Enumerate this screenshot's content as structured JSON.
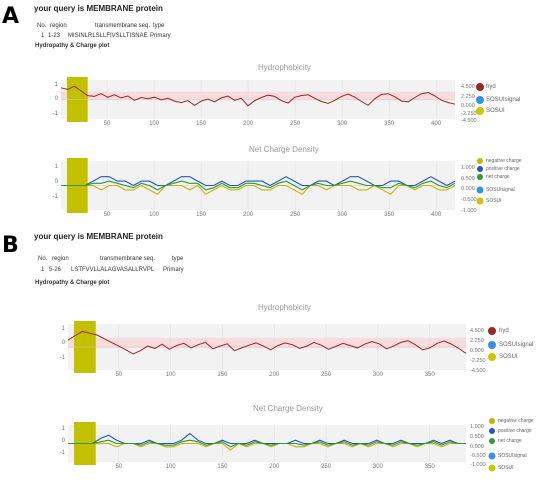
{
  "panels": [
    {
      "letter": "A",
      "query": "your query is MEMBRANE protein",
      "table": {
        "headers": [
          "No.",
          "region",
          "transmembrane seq.",
          "type"
        ],
        "row": [
          "1",
          "1-23",
          "MISINLRLSLLFIVSLLTISNAE",
          "Primary"
        ]
      },
      "subtitle": "Hydropathy & Charge plot",
      "hydro_title": "Hydrophobicity",
      "charge_title": "Net Charge Density",
      "hydro_legend": [
        "hyd",
        "SOSUIsignal",
        "SOSUI"
      ],
      "charge_legend": [
        "negative charge",
        "positive charge",
        "net charge",
        "SOSUIsignal",
        "SOSUI"
      ]
    },
    {
      "letter": "B",
      "query": "your query is MEMBRANE protein",
      "table": {
        "headers": [
          "No.",
          "region",
          "transmembrane seq.",
          "type"
        ],
        "row": [
          "1",
          "5-26",
          "LSTFVVLLALAGVASALLRVPL",
          "Primary"
        ]
      },
      "subtitle": "Hydropathy & Charge plot",
      "hydro_title": "Hydrophobicity",
      "charge_title": "Net Charge Density",
      "hydro_legend": [
        "hyd",
        "SOSUIsignal",
        "SOSUI"
      ],
      "charge_legend": [
        "negative charge",
        "positive charge",
        "net charge",
        "SOSUIsignal",
        "SOSUI"
      ]
    }
  ],
  "colors": {
    "hyd": "#a0261f",
    "negative": "#c8b400",
    "positive": "#2255cc",
    "net": "#2a9d2a",
    "signal": "#3a8ee6",
    "sosui": "#c8c800",
    "tm_band": "#c3c000"
  },
  "chart_data": [
    {
      "type": "line",
      "title": "Hydrophobicity",
      "x_ticks": [
        "50",
        "100",
        "150",
        "200",
        "250",
        "300",
        "350",
        "400"
      ],
      "xlim": [
        1,
        420
      ],
      "y_left_ticks": [
        "1",
        "0",
        "-1"
      ],
      "y_right_ticks": [
        "4.500",
        "2.250",
        "0.000",
        "-2.250",
        "-4.500"
      ],
      "tm_region": [
        1,
        23
      ],
      "series": [
        {
          "name": "hyd",
          "y": [
            3.0,
            2.6,
            3.4,
            2.2,
            1.0,
            0.8,
            1.5,
            0.6,
            1.2,
            0.4,
            0.9,
            -0.2,
            0.5,
            0.2,
            0.6,
            -0.1,
            0.3,
            -0.4,
            -0.8,
            -0.3,
            -1.5,
            -0.4,
            0.1,
            -0.6,
            0.4,
            0.9,
            -0.2,
            0.3,
            -1.6,
            -0.3,
            0.5,
            1.1,
            0.8,
            -0.3,
            -0.9,
            0.6,
            1.0,
            1.2,
            0.3,
            -0.5,
            -1.0,
            -0.2,
            0.8,
            1.4,
            0.6,
            -0.5,
            -1.5,
            0.2,
            1.3,
            1.5,
            0.7,
            -0.4,
            -0.6,
            0.5,
            1.5,
            1.8,
            0.9,
            -0.2,
            -0.8,
            -1.2
          ]
        }
      ]
    },
    {
      "type": "line",
      "title": "Net Charge Density",
      "x_ticks": [
        "50",
        "100",
        "150",
        "200",
        "250",
        "300",
        "350",
        "400"
      ],
      "xlim": [
        1,
        420
      ],
      "y_left_ticks": [
        "1",
        "0",
        "-1"
      ],
      "y_right_ticks": [
        "1.000",
        "0.500",
        "0.000",
        "-0.500",
        "-1.000"
      ],
      "tm_region": [
        1,
        23
      ],
      "series": [
        {
          "name": "positive charge",
          "y": [
            0,
            0,
            0,
            0,
            0.2,
            0.4,
            0.4,
            0.2,
            0.2,
            0,
            0.2,
            0.2,
            0,
            0,
            0.2,
            0.4,
            0.4,
            0.2,
            0,
            0,
            0.2,
            0,
            0,
            0.2,
            0.2,
            0.2,
            0,
            0.2,
            0.4,
            0.2,
            0,
            0,
            0.2,
            0.2,
            0,
            0.2,
            0.4,
            0.4,
            0.2,
            0,
            0,
            0.2,
            0.2,
            0,
            0,
            0.2,
            0.4,
            0.2,
            0,
            0.2
          ]
        },
        {
          "name": "negative charge",
          "y": [
            0,
            0,
            0,
            0,
            0,
            -0.2,
            0,
            0,
            -0.2,
            -0.2,
            0,
            -0.2,
            -0.4,
            0,
            0,
            0,
            -0.2,
            0,
            -0.4,
            -0.2,
            0,
            -0.2,
            -0.2,
            0,
            0,
            -0.2,
            -0.2,
            0,
            0,
            -0.2,
            -0.4,
            0,
            0,
            -0.2,
            0,
            0,
            0,
            -0.2,
            -0.2,
            0,
            -0.2,
            -0.4,
            0,
            0,
            -0.2,
            0,
            0,
            -0.2,
            -0.2,
            0
          ]
        },
        {
          "name": "net charge",
          "y": [
            0,
            0,
            0,
            0,
            0.1,
            0.1,
            0.2,
            0.1,
            0,
            -0.1,
            0.1,
            0,
            -0.2,
            0,
            0.1,
            0.2,
            0.1,
            0.1,
            -0.2,
            -0.1,
            0.1,
            -0.1,
            -0.1,
            0.1,
            0.1,
            0,
            -0.1,
            0.1,
            0.2,
            0,
            -0.2,
            0,
            0.1,
            0,
            0,
            0.1,
            0.2,
            0.1,
            0,
            0,
            -0.1,
            -0.1,
            0.1,
            0,
            -0.1,
            0.1,
            0.2,
            0,
            -0.1,
            0.1
          ]
        }
      ]
    },
    {
      "type": "line",
      "title": "Hydrophobicity",
      "x_ticks": [
        "50",
        "100",
        "150",
        "200",
        "250",
        "300",
        "350"
      ],
      "xlim": [
        1,
        385
      ],
      "y_left_ticks": [
        "1",
        "0",
        "-1"
      ],
      "y_right_ticks": [
        "4.500",
        "2.250",
        "0.000",
        "-2.250",
        "-4.500"
      ],
      "tm_region": [
        5,
        26
      ],
      "series": [
        {
          "name": "hyd",
          "y": [
            1.5,
            2.5,
            3.4,
            3.0,
            2.6,
            1.8,
            1.0,
            0.2,
            -0.6,
            -1.5,
            -0.8,
            0.2,
            -0.3,
            0.6,
            -0.5,
            0.3,
            0.8,
            -0.2,
            0.5,
            1.0,
            -0.4,
            0.2,
            0.7,
            -0.8,
            -0.2,
            0.4,
            0.9,
            0.2,
            -0.6,
            0.3,
            0.9,
            0.5,
            -0.3,
            0.2,
            1.0,
            0.4,
            -0.5,
            0.1,
            0.8,
            0.3,
            -0.2,
            0.6,
            1.2,
            0.7,
            -0.4,
            0.2,
            1.0,
            1.4,
            0.5,
            -0.6,
            -0.2,
            0.8,
            1.3,
            0.6,
            -0.3,
            -1.4
          ]
        }
      ]
    },
    {
      "type": "line",
      "title": "Net Charge Density",
      "x_ticks": [
        "50",
        "100",
        "150",
        "200",
        "250",
        "300",
        "350"
      ],
      "xlim": [
        1,
        385
      ],
      "y_left_ticks": [
        "1",
        "0",
        "-1"
      ],
      "y_right_ticks": [
        "1.000",
        "0.500",
        "0.000",
        "-0.500",
        "-1.000"
      ],
      "tm_region": [
        5,
        26
      ],
      "series": [
        {
          "name": "positive charge",
          "y": [
            0,
            0,
            0,
            0,
            0.3,
            0.5,
            0.2,
            0,
            0,
            0,
            0.2,
            0,
            0,
            0,
            0.2,
            0.6,
            0.2,
            0,
            0,
            0.2,
            0,
            0,
            0,
            0.2,
            0,
            0,
            0,
            0,
            0.2,
            0,
            0,
            0.2,
            0,
            0,
            0.2,
            0,
            0,
            0,
            0.2,
            0,
            0,
            0.2,
            0,
            0,
            0,
            0.2,
            0,
            0.2,
            0,
            0
          ]
        },
        {
          "name": "negative charge",
          "y": [
            0,
            0,
            0,
            0,
            0,
            0,
            -0.2,
            0,
            0,
            -0.2,
            0,
            0,
            -0.2,
            -0.2,
            0,
            0,
            0,
            -0.2,
            0,
            0,
            -0.4,
            0,
            -0.2,
            0,
            0,
            -0.2,
            0,
            0,
            -0.2,
            -0.2,
            0,
            0,
            -0.2,
            0,
            0,
            -0.2,
            0,
            -0.2,
            0,
            0,
            -0.2,
            0,
            0,
            -0.2,
            0,
            0,
            -0.2,
            0,
            0,
            0
          ]
        },
        {
          "name": "net charge",
          "y": [
            0,
            0,
            0,
            0,
            0.1,
            0.2,
            0,
            0,
            0,
            -0.1,
            0.1,
            0,
            -0.1,
            -0.1,
            0.1,
            0.2,
            0.1,
            -0.1,
            0,
            0.1,
            -0.2,
            0,
            -0.1,
            0.1,
            0,
            -0.1,
            0,
            0,
            0,
            -0.1,
            0,
            0.1,
            -0.1,
            0,
            0.1,
            -0.1,
            0,
            -0.1,
            0.1,
            0,
            -0.1,
            0.1,
            0,
            -0.1,
            0,
            0.1,
            -0.1,
            0.1,
            0,
            0
          ]
        }
      ]
    }
  ]
}
